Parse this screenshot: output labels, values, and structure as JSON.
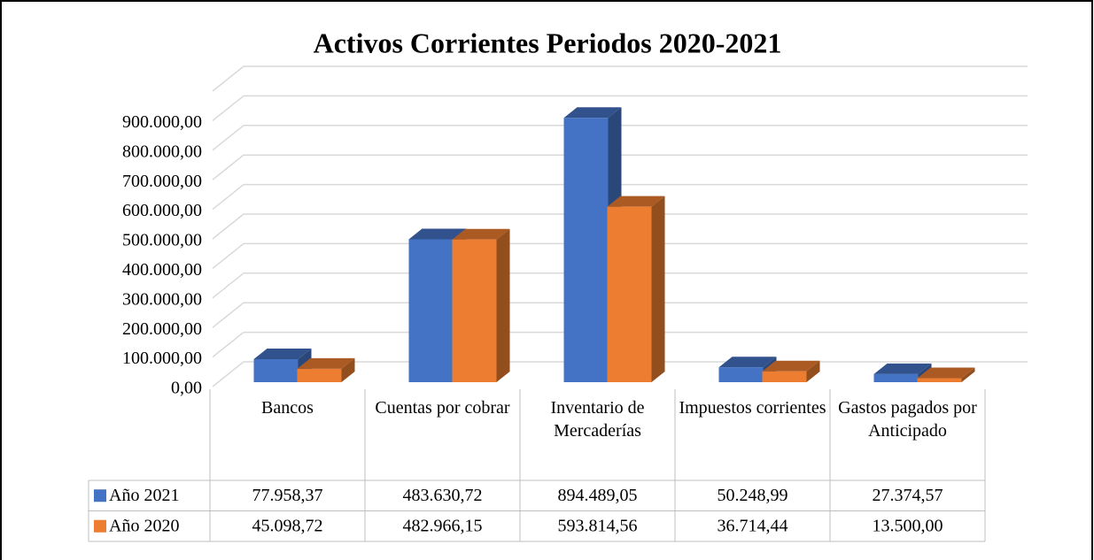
{
  "chart_data": {
    "type": "bar3d",
    "title": "Activos Corrientes Periodos 2020-2021",
    "categories": [
      "Bancos",
      "Cuentas por cobrar",
      "Inventario de Mercaderías",
      "Impuestos corrientes",
      "Gastos pagados por Anticipado"
    ],
    "series": [
      {
        "name": "Año 2021",
        "color": "#4472c4",
        "values": [
          77958.37,
          483630.72,
          894489.05,
          50248.99,
          27374.57
        ],
        "value_labels": [
          "77.958,37",
          "483.630,72",
          "894.489,05",
          "50.248,99",
          "27.374,57"
        ]
      },
      {
        "name": "Año 2020",
        "color": "#ed7d31",
        "values": [
          45098.72,
          482966.15,
          593814.56,
          36714.44,
          13500.0
        ],
        "value_labels": [
          "45.098,72",
          "482.966,15",
          "593.814,56",
          "36.714,44",
          "13.500,00"
        ]
      }
    ],
    "ylim": [
      0,
      1000000
    ],
    "yticks": [
      {
        "value": 0,
        "label": "0,00"
      },
      {
        "value": 100000,
        "label": "100.000,00"
      },
      {
        "value": 200000,
        "label": "200.000,00"
      },
      {
        "value": 300000,
        "label": "300.000,00"
      },
      {
        "value": 400000,
        "label": "400.000,00"
      },
      {
        "value": 500000,
        "label": "500.000,00"
      },
      {
        "value": 600000,
        "label": "600.000,00"
      },
      {
        "value": 700000,
        "label": "700.000,00"
      },
      {
        "value": 800000,
        "label": "800.000,00"
      },
      {
        "value": 900000,
        "label": "900.000,00"
      }
    ],
    "grid": true
  }
}
